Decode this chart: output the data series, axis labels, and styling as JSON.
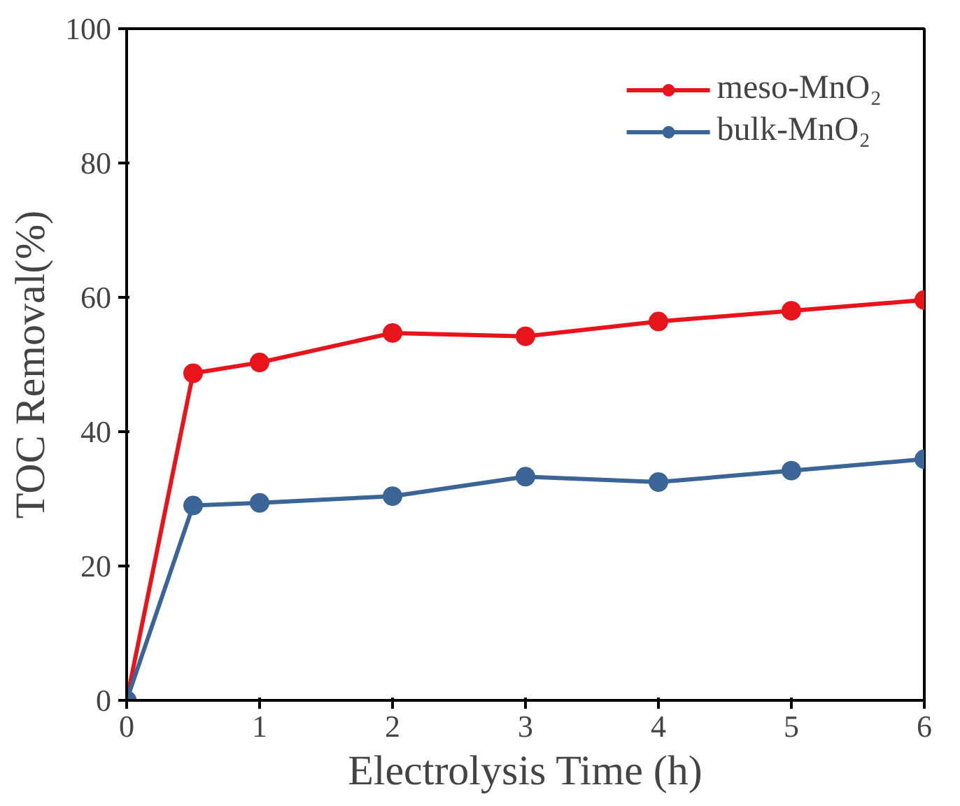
{
  "chart_data": {
    "type": "line",
    "xlabel": "Electrolysis Time (h)",
    "ylabel": "TOC Removal(%)",
    "x": [
      0,
      0.5,
      1,
      2,
      3,
      4,
      5,
      6
    ],
    "series": [
      {
        "name": "meso-MnO₂",
        "color": "#e8141b",
        "values": [
          0,
          48.7,
          50.3,
          54.7,
          54.2,
          56.4,
          58.0,
          59.6
        ]
      },
      {
        "name": "bulk-MnO₂",
        "color": "#3b6597",
        "values": [
          0,
          29.0,
          29.4,
          30.4,
          33.3,
          32.5,
          34.2,
          35.9
        ]
      }
    ],
    "xlim": [
      0,
      6
    ],
    "xticks": [
      0,
      1,
      2,
      3,
      4,
      5,
      6
    ],
    "ylim": [
      0,
      100
    ],
    "yticks": [
      0,
      20,
      40,
      60,
      80,
      100
    ],
    "grid": false,
    "legend": "top right",
    "marker": "circle",
    "line_style": "solid"
  }
}
